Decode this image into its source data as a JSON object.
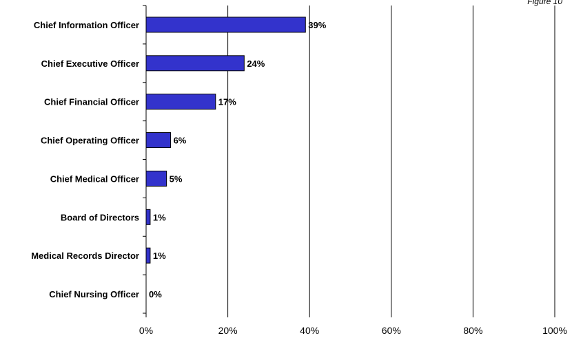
{
  "figure_label": "Figure 10",
  "colors": {
    "bar_fill": "#3333cc",
    "bar_stroke": "#000000",
    "grid": "#000000"
  },
  "chart_data": {
    "type": "bar",
    "orientation": "horizontal",
    "categories": [
      "Chief Information Officer",
      "Chief Executive Officer",
      "Chief Financial Officer",
      "Chief Operating Officer",
      "Chief Medical Officer",
      "Board of Directors",
      "Medical Records Director",
      "Chief Nursing Officer"
    ],
    "values": [
      39,
      24,
      17,
      6,
      5,
      1,
      1,
      0
    ],
    "value_labels": [
      "39%",
      "24%",
      "17%",
      "6%",
      "5%",
      "1%",
      "1%",
      "0%"
    ],
    "xlim": [
      0,
      100
    ],
    "xticks": [
      "0%",
      "20%",
      "40%",
      "60%",
      "80%",
      "100%"
    ],
    "grid": "vertical",
    "legend": "none"
  }
}
